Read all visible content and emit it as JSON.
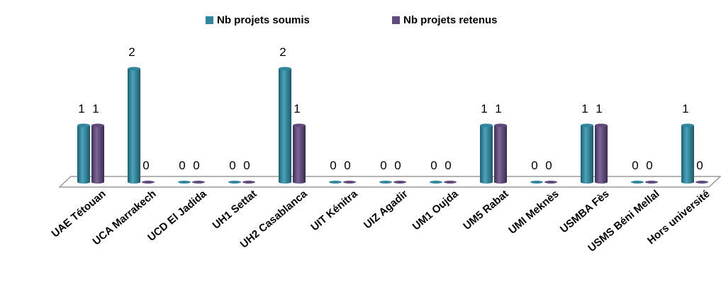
{
  "chart_data": {
    "type": "bar",
    "categories": [
      "UAE Tétouan",
      "UCA Marrakech",
      "UCD El Jadida",
      "UH1 Settat",
      "UH2 Casablanca",
      "UIT Kénitra",
      "UIZ Agadir",
      "UM1 Oujda",
      "UM5 Rabat",
      "UMI Meknès",
      "USMBA Fès",
      "USMS Béni Mellal",
      "Hors université"
    ],
    "series": [
      {
        "name": "Nb projets soumis",
        "color": "#31859c",
        "values": [
          1,
          2,
          0,
          0,
          2,
          0,
          0,
          0,
          1,
          0,
          1,
          0,
          1
        ]
      },
      {
        "name": "Nb projets retenus",
        "color": "#604a7b",
        "values": [
          1,
          0,
          0,
          0,
          1,
          0,
          0,
          0,
          1,
          0,
          1,
          0,
          0
        ]
      }
    ],
    "legend": "top"
  }
}
